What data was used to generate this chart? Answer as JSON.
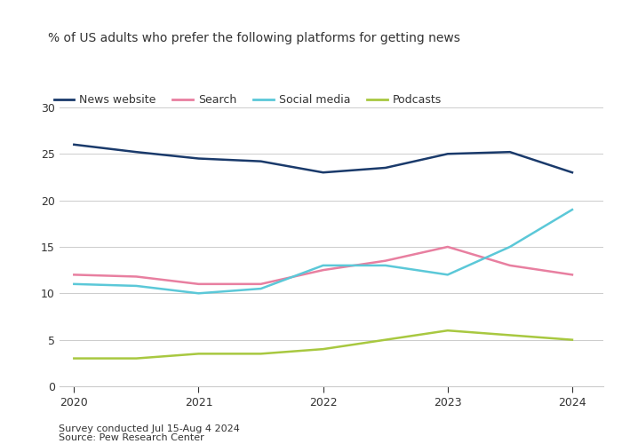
{
  "title": "% of US adults who prefer the following platforms for getting news",
  "footnote1": "Survey conducted Jul 15-Aug 4 2024",
  "footnote2": "Source: Pew Research Center",
  "x": [
    2020,
    2020.5,
    2021,
    2021.5,
    2022,
    2022.5,
    2023,
    2023.5,
    2024
  ],
  "news_website": [
    26,
    25.2,
    24.5,
    24.2,
    23,
    23.5,
    25,
    25.2,
    23
  ],
  "search": [
    12,
    11.8,
    11,
    11,
    12.5,
    13.5,
    15,
    13,
    12
  ],
  "social_media": [
    11,
    10.8,
    10,
    10.5,
    13,
    13,
    12,
    15,
    19
  ],
  "podcasts": [
    3,
    3,
    3.5,
    3.5,
    4,
    5,
    6,
    5.5,
    5
  ],
  "colors": {
    "news_website": "#1a3a6b",
    "search": "#e87fa0",
    "social_media": "#5bc8d8",
    "podcasts": "#a8c840"
  },
  "legend_labels": [
    "News website",
    "Search",
    "Social media",
    "Podcasts"
  ],
  "ylim": [
    0,
    32
  ],
  "yticks": [
    0,
    5,
    10,
    15,
    20,
    25,
    30
  ],
  "xlim": [
    2019.88,
    2024.25
  ],
  "xticks": [
    2020,
    2021,
    2022,
    2023,
    2024
  ],
  "background_color": "#ffffff",
  "plot_bg_color": "#f5f5f0",
  "text_color": "#333333",
  "grid_color": "#cccccc",
  "line_width": 1.8,
  "title_fontsize": 10,
  "legend_fontsize": 9,
  "tick_fontsize": 9,
  "footnote_fontsize": 8
}
